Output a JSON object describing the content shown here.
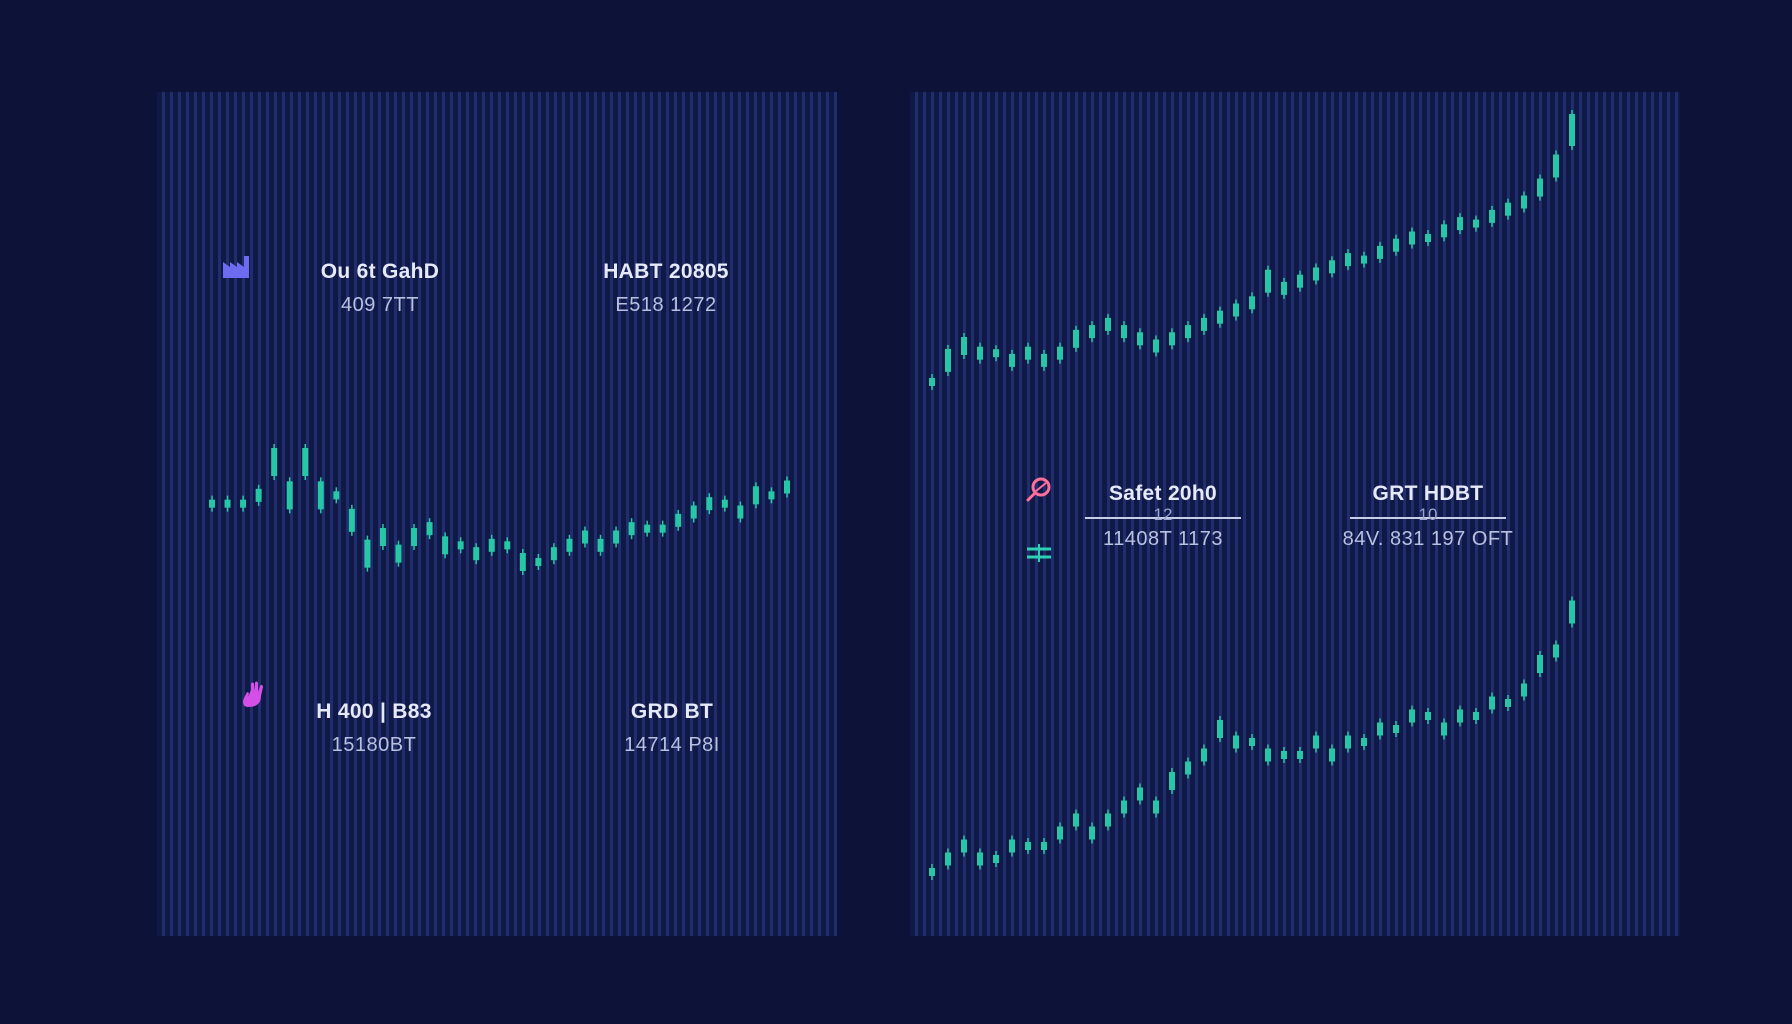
{
  "colors": {
    "background": "#0c1238",
    "panel": "#101848",
    "candle": "#26c6a6",
    "icon_blue": "#6d6cf0",
    "icon_magenta": "#d44fe8",
    "icon_pink": "#ff6f9a",
    "icon_teal": "#2ad1b5"
  },
  "icons": {
    "factory": "factory-icon",
    "hand": "hand-icon",
    "magnifier": "magnifier-icon",
    "equals": "equals-icon"
  },
  "left_panel": {
    "stats": [
      {
        "label": "Ou 6t GahD",
        "value": "409 7TT"
      },
      {
        "label": "HABT 20805",
        "value": "E518 1272"
      },
      {
        "label": "H 400 | B83",
        "value": "15180BT"
      },
      {
        "label": "GRD BT",
        "value": "14714 P8I"
      }
    ]
  },
  "right_panel": {
    "stats": [
      {
        "label": "Safet 20h0",
        "rule_label": "12",
        "value": "11408T 1173"
      },
      {
        "label": "GRT HDBT",
        "rule_label": "10",
        "value": "84V. 831 197 OFT"
      }
    ]
  },
  "chart_data": [
    {
      "type": "line",
      "series": [
        {
          "values": [
            50,
            50,
            50,
            51,
            55,
            51,
            55,
            51,
            51,
            48,
            44,
            46,
            44,
            46,
            47,
            45,
            45,
            44,
            45,
            45,
            43,
            43,
            44,
            45,
            46,
            45,
            46,
            47,
            47,
            47,
            48,
            49,
            50,
            50,
            49,
            51,
            51,
            52
          ]
        }
      ]
    },
    {
      "type": "line",
      "series": [
        {
          "values": [
            20,
            23,
            25,
            24,
            24,
            23,
            24,
            23,
            24,
            26,
            27,
            28,
            27,
            26,
            25,
            26,
            27,
            28,
            29,
            30,
            31,
            34,
            33,
            34,
            35,
            36,
            37,
            37,
            38,
            39,
            40,
            40,
            41,
            42,
            42,
            43,
            44,
            45,
            47,
            50,
            55
          ]
        },
        {
          "values": [
            20,
            21,
            22,
            21,
            21,
            22,
            22,
            22,
            23,
            24,
            23,
            24,
            25,
            26,
            25,
            27,
            28,
            29,
            31,
            30,
            30,
            29,
            29,
            29,
            30,
            29,
            30,
            30,
            31,
            31,
            32,
            32,
            31,
            32,
            32,
            33,
            33,
            34,
            36,
            37,
            40
          ]
        }
      ]
    }
  ]
}
